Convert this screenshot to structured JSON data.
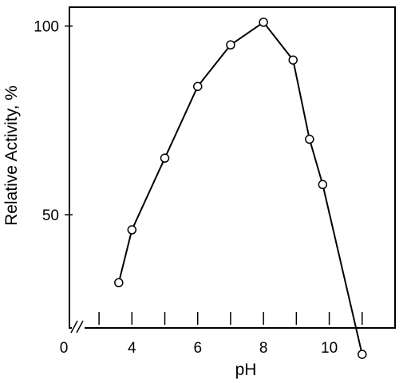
{
  "chart_data": {
    "type": "line",
    "title": "",
    "xlabel": "pH",
    "ylabel": "Relative Activity, %",
    "x_tick_labels": [
      {
        "value": 4,
        "label": "4"
      },
      {
        "value": 6,
        "label": "6"
      },
      {
        "value": 8,
        "label": "8"
      },
      {
        "value": 10,
        "label": "10"
      }
    ],
    "x_origin_label": "0",
    "x_minor_ticks": [
      3,
      4,
      5,
      6,
      7,
      8,
      9,
      10,
      11
    ],
    "y_ticks": [
      {
        "value": 50,
        "label": "50"
      },
      {
        "value": 100,
        "label": "100"
      }
    ],
    "xlim": [
      2.1,
      12.0
    ],
    "ylim": [
      20,
      105
    ],
    "axis_break": true,
    "grid": false,
    "marker": "open-circle",
    "colors": {
      "line": "#000000",
      "marker_fill": "#ffffff"
    },
    "series": [
      {
        "name": "",
        "x": [
          3.6,
          4.0,
          5.0,
          6.0,
          7.0,
          8.0,
          8.9,
          9.4,
          9.8,
          11.0
        ],
        "y": [
          32,
          46,
          65,
          84,
          95,
          101,
          91,
          70,
          58,
          13
        ]
      }
    ]
  }
}
